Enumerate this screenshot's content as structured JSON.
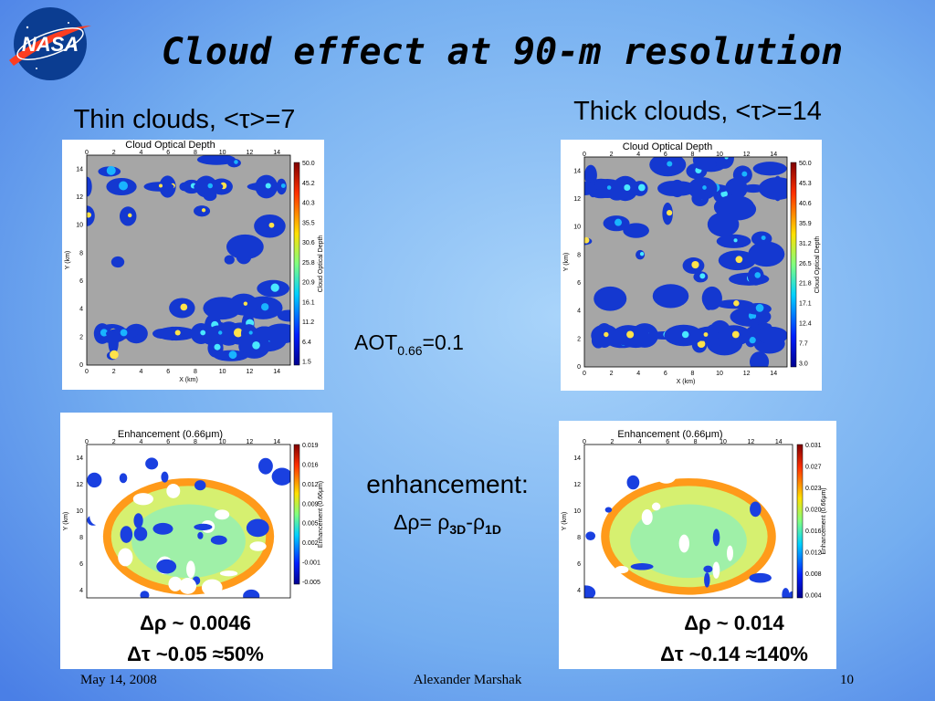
{
  "logo": "NASA",
  "title": "Cloud effect at 90-m resolution",
  "left_heading": "Thin clouds, <τ>=7",
  "right_heading": "Thick clouds, <τ>=14",
  "aot": {
    "main": "AOT",
    "sub": "0.66",
    "rest": "=0.1"
  },
  "enhancement": {
    "label": "enhancement:",
    "lhs": "Δρ= ρ",
    "sub1": "3D",
    "mid": "-ρ",
    "sub2": "1D"
  },
  "panels": [
    {
      "title": "Cloud Optical Depth",
      "x_label": "X (km)",
      "y_label": "Y (km)",
      "x_ticks": [
        "0",
        "2",
        "4",
        "6",
        "8",
        "10",
        "12",
        "14"
      ],
      "y_ticks": [
        "0",
        "2",
        "4",
        "6",
        "8",
        "10",
        "12",
        "14"
      ],
      "colorbar_label": "Cloud Optical Depth",
      "colorbar_ticks": [
        "50.0",
        "45.2",
        "40.3",
        "35.5",
        "30.6",
        "25.8",
        "20.9",
        "16.1",
        "11.2",
        "6.4",
        "1.5"
      ]
    },
    {
      "title": "Cloud Optical Depth",
      "x_label": "X (km)",
      "y_label": "Y (km)",
      "x_ticks": [
        "0",
        "2",
        "4",
        "6",
        "8",
        "10",
        "12",
        "14"
      ],
      "y_ticks": [
        "0",
        "2",
        "4",
        "6",
        "8",
        "10",
        "12",
        "14"
      ],
      "colorbar_label": "Cloud Optical Depth",
      "colorbar_ticks": [
        "50.0",
        "45.3",
        "40.6",
        "35.9",
        "31.2",
        "26.5",
        "21.8",
        "17.1",
        "12.4",
        "7.7",
        "3.0"
      ]
    },
    {
      "title": "Enhancement (0.66μm)",
      "y_label": "Y (km)",
      "x_ticks": [
        "0",
        "2",
        "4",
        "6",
        "8",
        "10",
        "12",
        "14"
      ],
      "y_ticks": [
        "4",
        "6",
        "8",
        "10",
        "12",
        "14"
      ],
      "colorbar_label": "Enhancement (0.66μm)",
      "colorbar_ticks": [
        "0.019",
        "0.016",
        "0.012",
        "0.009",
        "0.005",
        "0.002",
        "-0.001",
        "-0.005"
      ]
    },
    {
      "title": "Enhancement (0.66μm)",
      "y_label": "Y (km)",
      "x_ticks": [
        "0",
        "2",
        "4",
        "6",
        "8",
        "10",
        "12",
        "14"
      ],
      "y_ticks": [
        "4",
        "6",
        "8",
        "10",
        "12",
        "14"
      ],
      "colorbar_label": "Enhancement (0.66μm)",
      "colorbar_ticks": [
        "0.031",
        "0.027",
        "0.023",
        "0.020",
        "0.016",
        "0.012",
        "0.008",
        "0.004"
      ]
    }
  ],
  "results": [
    {
      "line1": "Δρ ~ 0.0046",
      "line2": "Δτ ~0.05 ≈50%"
    },
    {
      "line1": "Δρ ~ 0.014",
      "line2": "Δτ ~0.14 ≈140%"
    }
  ],
  "footer": {
    "date": "May 14, 2008",
    "author": "Alexander Marshak",
    "page": "10"
  }
}
